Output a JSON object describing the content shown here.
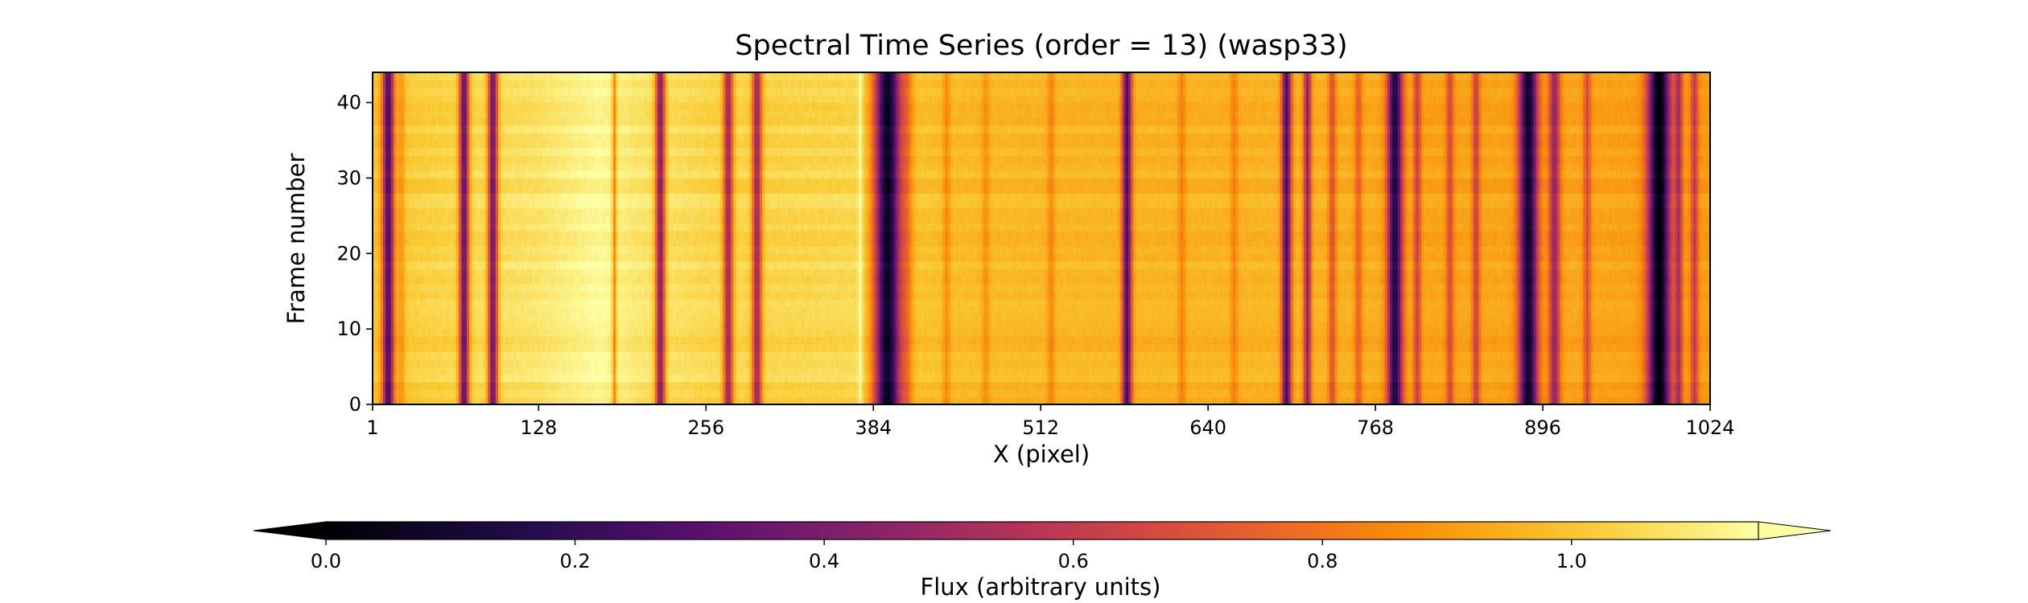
{
  "chart_data": [
    {
      "type": "heatmap",
      "title": "Spectral Time Series (order = 13) (wasp33)",
      "xlabel": "X (pixel)",
      "ylabel": "Frame number",
      "xlim": [
        1,
        1024
      ],
      "ylim": [
        0,
        44
      ],
      "x_ticks": [
        1,
        128,
        256,
        384,
        512,
        640,
        768,
        896,
        1024
      ],
      "y_ticks": [
        0,
        10,
        20,
        30,
        40
      ],
      "grid": false,
      "colormap": "inferno",
      "value_range": [
        0.0,
        1.15
      ],
      "frames": 44,
      "continuum": [
        [
          1,
          1.0
        ],
        [
          40,
          1.03
        ],
        [
          90,
          1.06
        ],
        [
          128,
          1.08
        ],
        [
          160,
          1.12
        ],
        [
          175,
          1.14
        ],
        [
          200,
          1.09
        ],
        [
          256,
          1.05
        ],
        [
          300,
          1.04
        ],
        [
          370,
          1.05
        ],
        [
          384,
          1.02
        ],
        [
          450,
          0.98
        ],
        [
          512,
          0.97
        ],
        [
          600,
          0.96
        ],
        [
          700,
          0.96
        ],
        [
          768,
          0.94
        ],
        [
          820,
          0.92
        ],
        [
          896,
          0.93
        ],
        [
          950,
          0.92
        ],
        [
          1024,
          0.9
        ]
      ],
      "absorption_lines": [
        {
          "x": 13,
          "depth": 0.75,
          "width": 3
        },
        {
          "x": 23,
          "depth": 0.12,
          "width": 2
        },
        {
          "x": 71,
          "depth": 0.72,
          "width": 2.5
        },
        {
          "x": 93,
          "depth": 0.7,
          "width": 2.5
        },
        {
          "x": 186,
          "depth": 0.25,
          "width": 1.2
        },
        {
          "x": 221,
          "depth": 0.65,
          "width": 2.5
        },
        {
          "x": 273,
          "depth": 0.55,
          "width": 2.5
        },
        {
          "x": 295,
          "depth": 0.55,
          "width": 2.5
        },
        {
          "x": 395,
          "depth": 0.95,
          "width": 7
        },
        {
          "x": 410,
          "depth": 0.15,
          "width": 3
        },
        {
          "x": 440,
          "depth": 0.12,
          "width": 2
        },
        {
          "x": 470,
          "depth": 0.1,
          "width": 2
        },
        {
          "x": 520,
          "depth": 0.12,
          "width": 2
        },
        {
          "x": 578,
          "depth": 0.7,
          "width": 2.5
        },
        {
          "x": 620,
          "depth": 0.12,
          "width": 2
        },
        {
          "x": 660,
          "depth": 0.12,
          "width": 2
        },
        {
          "x": 700,
          "depth": 0.7,
          "width": 2.5
        },
        {
          "x": 716,
          "depth": 0.5,
          "width": 2
        },
        {
          "x": 735,
          "depth": 0.25,
          "width": 2
        },
        {
          "x": 755,
          "depth": 0.2,
          "width": 2
        },
        {
          "x": 783,
          "depth": 0.8,
          "width": 4
        },
        {
          "x": 800,
          "depth": 0.3,
          "width": 2
        },
        {
          "x": 825,
          "depth": 0.25,
          "width": 2
        },
        {
          "x": 845,
          "depth": 0.3,
          "width": 2
        },
        {
          "x": 885,
          "depth": 0.85,
          "width": 5
        },
        {
          "x": 905,
          "depth": 0.45,
          "width": 3
        },
        {
          "x": 930,
          "depth": 0.25,
          "width": 2
        },
        {
          "x": 985,
          "depth": 0.92,
          "width": 6
        },
        {
          "x": 1000,
          "depth": 0.35,
          "width": 2
        },
        {
          "x": 1012,
          "depth": 0.3,
          "width": 2
        }
      ],
      "emission_spikes": [
        {
          "x": 374,
          "height": 0.12,
          "width": 1.2
        }
      ]
    },
    {
      "type": "colorbar",
      "label": "Flux (arbitrary units)",
      "orientation": "horizontal",
      "extend": "both",
      "range": [
        0.0,
        1.15
      ],
      "ticks": [
        0.0,
        0.2,
        0.4,
        0.6,
        0.8,
        1.0
      ],
      "tick_labels": [
        "0.0",
        "0.2",
        "0.4",
        "0.6",
        "0.8",
        "1.0"
      ]
    }
  ]
}
